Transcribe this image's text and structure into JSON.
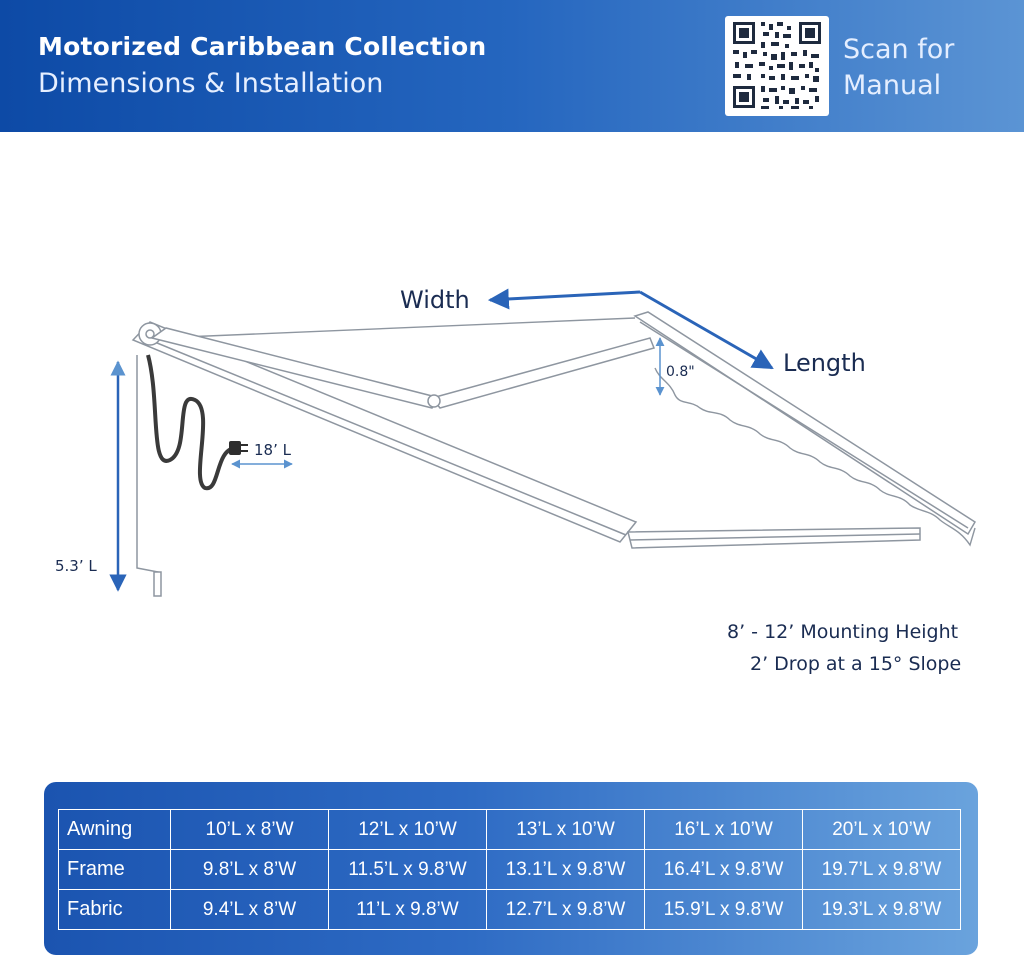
{
  "header": {
    "title": "Motorized Caribbean Collection",
    "subtitle": "Dimensions & Installation",
    "scan_text": "Scan for Manual",
    "qr_icon": "qr-code-icon"
  },
  "diagram": {
    "width_label": "Width",
    "length_label": "Length",
    "valance_height": "0.8\"",
    "cord_length": "18’ L",
    "crank_length": "5.3’ L",
    "mounting_height": "8’ - 12’ Mounting Height",
    "drop": "2’ Drop at a 15° Slope"
  },
  "table": {
    "rows": [
      {
        "label": "Awning",
        "cells": [
          "10’L x 8’W",
          "12’L x 10’W",
          "13’L x 10’W",
          "16’L x 10’W",
          "20’L x 10’W"
        ]
      },
      {
        "label": "Frame",
        "cells": [
          "9.8’L x 8’W",
          "11.5’L x 9.8’W",
          "13.1’L x 9.8’W",
          "16.4’L x 9.8’W",
          "19.7’L x 9.8’W"
        ]
      },
      {
        "label": "Fabric",
        "cells": [
          "9.4’L x 8’W",
          "11’L x 9.8’W",
          "12.7’L x 9.8’W",
          "15.9’L x 9.8’W",
          "19.3’L x 9.8’W"
        ]
      }
    ]
  },
  "colors": {
    "header_start": "#0d4aa6",
    "header_end": "#5b94d4",
    "arrow": "#2a64b8",
    "dimension": "#5b93cf",
    "label_text": "#1a2c52"
  }
}
